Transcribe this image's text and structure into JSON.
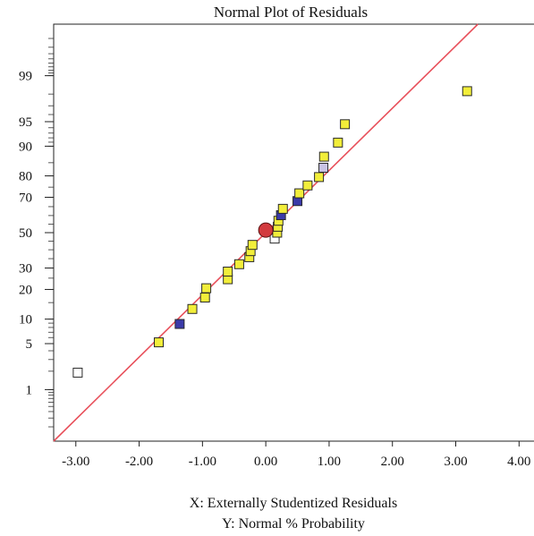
{
  "chart_data": {
    "type": "scatter",
    "title": "Normal Plot of Residuals",
    "xlabel": "X: Externally Studentized Residuals",
    "ylabel": "Y: Normal % Probability",
    "xlim": [
      -3.35,
      4.25
    ],
    "ylim": [
      0.1,
      99.9
    ],
    "y_scale": "normal-probability",
    "grid": false,
    "x_ticks": [
      -3.0,
      -2.0,
      -1.0,
      0.0,
      1.0,
      2.0,
      3.0,
      4.0
    ],
    "x_tick_labels": [
      "-3.00",
      "-2.00",
      "-1.00",
      "0.00",
      "1.00",
      "2.00",
      "3.00",
      "4.00"
    ],
    "y_ticks": [
      1,
      5,
      10,
      20,
      30,
      50,
      70,
      80,
      90,
      95,
      99
    ],
    "y_tick_labels": [
      "1",
      "5",
      "10",
      "20",
      "30",
      "50",
      "70",
      "80",
      "90",
      "95",
      "99"
    ],
    "reference_line": {
      "color": "#e8505b",
      "points": [
        [
          -3.35,
          0.1
        ],
        [
          3.35,
          99.9
        ]
      ]
    },
    "colors": {
      "yellow_point": "#f2ee3a",
      "blue_point": "#3b3aa8",
      "white_point": "#ffffff",
      "lavender_point": "#c9c4e6",
      "highlight_point": "#d23a3e",
      "line": "#e8505b",
      "axis": "#222222"
    },
    "points": [
      {
        "x": -2.97,
        "y": 1.9,
        "color": "white_point"
      },
      {
        "x": -1.69,
        "y": 5.2,
        "color": "yellow_point"
      },
      {
        "x": -1.36,
        "y": 8.8,
        "color": "blue_point"
      },
      {
        "x": -1.16,
        "y": 12.9,
        "color": "yellow_point"
      },
      {
        "x": -0.96,
        "y": 16.8,
        "color": "yellow_point"
      },
      {
        "x": -0.94,
        "y": 20.5,
        "color": "yellow_point"
      },
      {
        "x": -0.6,
        "y": 24.5,
        "color": "yellow_point"
      },
      {
        "x": -0.6,
        "y": 28.2,
        "color": "yellow_point"
      },
      {
        "x": -0.42,
        "y": 32.0,
        "color": "yellow_point"
      },
      {
        "x": -0.26,
        "y": 35.8,
        "color": "yellow_point"
      },
      {
        "x": -0.24,
        "y": 39.2,
        "color": "yellow_point"
      },
      {
        "x": -0.21,
        "y": 42.8,
        "color": "yellow_point"
      },
      {
        "x": 0.14,
        "y": 46.5,
        "color": "white_point"
      },
      {
        "x": 0.18,
        "y": 50.0,
        "color": "yellow_point"
      },
      {
        "x": 0.19,
        "y": 53.5,
        "color": "yellow_point"
      },
      {
        "x": 0.2,
        "y": 57.0,
        "color": "yellow_point"
      },
      {
        "x": 0.24,
        "y": 60.2,
        "color": "blue_point"
      },
      {
        "x": 0.27,
        "y": 63.8,
        "color": "yellow_point"
      },
      {
        "x": 0.5,
        "y": 68.0,
        "color": "blue_point"
      },
      {
        "x": 0.53,
        "y": 72.0,
        "color": "yellow_point"
      },
      {
        "x": 0.66,
        "y": 75.8,
        "color": "yellow_point"
      },
      {
        "x": 0.84,
        "y": 79.5,
        "color": "yellow_point"
      },
      {
        "x": 0.91,
        "y": 83.2,
        "color": "lavender_point"
      },
      {
        "x": 0.92,
        "y": 87.0,
        "color": "yellow_point"
      },
      {
        "x": 1.14,
        "y": 90.9,
        "color": "yellow_point"
      },
      {
        "x": 1.25,
        "y": 94.6,
        "color": "yellow_point"
      },
      {
        "x": 3.18,
        "y": 98.2,
        "color": "yellow_point"
      }
    ],
    "highlight_point": {
      "x": 0.0,
      "y": 51.5
    }
  }
}
